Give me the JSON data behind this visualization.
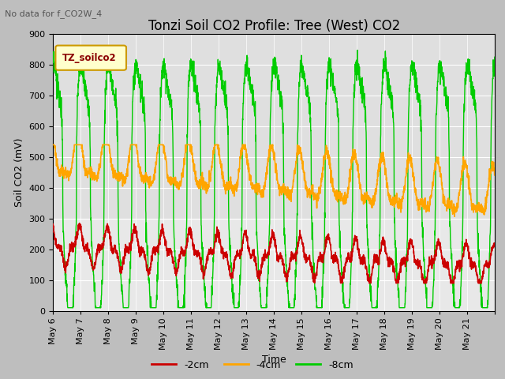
{
  "title": "Tonzi Soil CO2 Profile: Tree (West) CO2",
  "subtitle": "No data for f_CO2W_4",
  "ylabel": "Soil CO2 (mV)",
  "xlabel": "Time",
  "legend_title": "TZ_soilco2",
  "ylim": [
    0,
    900
  ],
  "series": {
    "-2cm": {
      "color": "#cc0000"
    },
    "-4cm": {
      "color": "#ffa500"
    },
    "-8cm": {
      "color": "#00cc00"
    }
  },
  "fig_bg": "#bebebe",
  "plot_bg": "#e8e8e8",
  "shaded_bg": "#dcdcdc",
  "x_tick_labels": [
    "May 6",
    "May 7",
    "May 8",
    "May 9",
    "May 10",
    "May 11",
    "May 12",
    "May 13",
    "May 14",
    "May 15",
    "May 16",
    "May 17",
    "May 18",
    "May 19",
    "May 20",
    "May 21"
  ],
  "title_fontsize": 12,
  "axis_fontsize": 9,
  "tick_fontsize": 8,
  "legend_box_color": "#ffffcc",
  "legend_box_edge": "#cc9900",
  "legend_text_color": "#8b0000"
}
